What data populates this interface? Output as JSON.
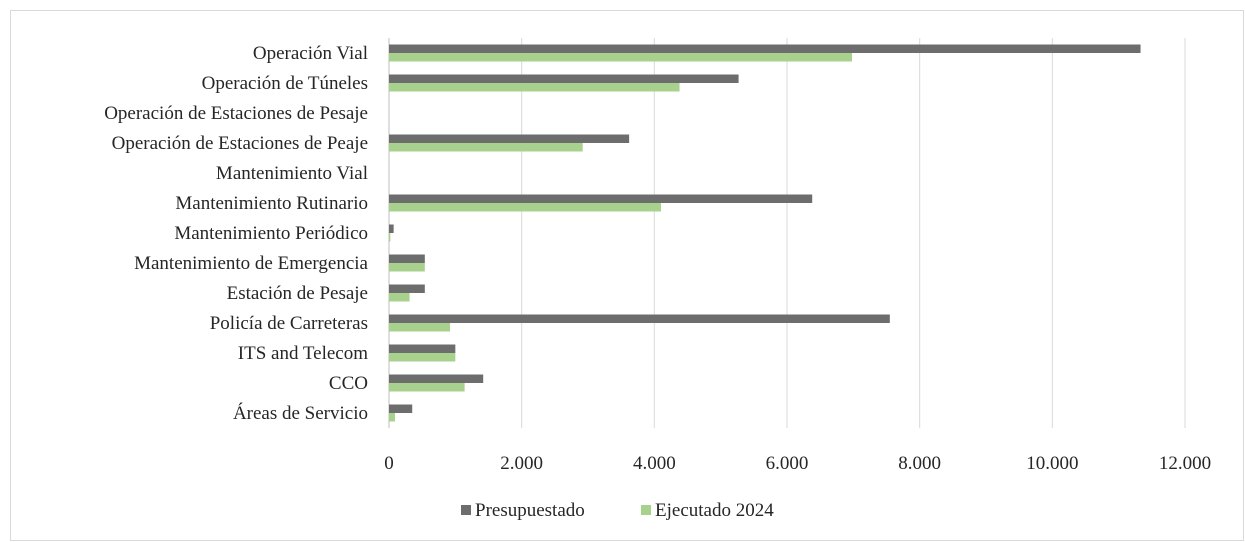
{
  "chart_data": {
    "type": "bar",
    "orientation": "horizontal",
    "categories": [
      "Operación Vial",
      "Operación de Túneles",
      "Operación de Estaciones de Pesaje",
      "Operación de Estaciones de Peaje",
      "Mantenimiento Vial",
      "Mantenimiento Rutinario",
      "Mantenimiento Periódico",
      "Mantenimiento de Emergencia",
      "Estación de Pesaje",
      "Policía de Carreteras",
      "ITS and Telecom",
      "CCO",
      "Áreas de Servicio"
    ],
    "series": [
      {
        "name": "Presupuestado",
        "color": "#6d6d6d",
        "values": [
          11330,
          5270,
          null,
          3620,
          null,
          6380,
          70,
          540,
          540,
          7550,
          1000,
          1420,
          350
        ]
      },
      {
        "name": "Ejecutado 2024",
        "color": "#a9d18e",
        "values": [
          6980,
          4380,
          null,
          2920,
          null,
          4100,
          20,
          540,
          310,
          920,
          1000,
          1140,
          90
        ]
      }
    ],
    "xlim": [
      0,
      12000
    ],
    "xticks": [
      "0",
      "2.000",
      "4.000",
      "6.000",
      "8.000",
      "10.000",
      "12.000"
    ],
    "xtick_values": [
      0,
      2000,
      4000,
      6000,
      8000,
      10000,
      12000
    ],
    "grid": "vertical",
    "legend_position": "bottom",
    "title": "",
    "xlabel": "",
    "ylabel": ""
  }
}
